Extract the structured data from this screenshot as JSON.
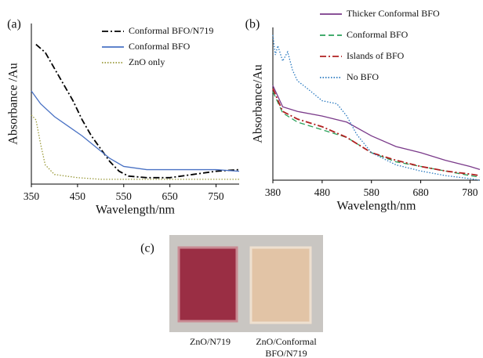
{
  "chart_data": [
    {
      "type": "line",
      "panel_label": "(a)",
      "x_label": "Wavelength/nm",
      "y_label": "Absorbance /Au",
      "xlim": [
        350,
        800
      ],
      "ylim": [
        0,
        1
      ],
      "xticks": [
        350,
        450,
        550,
        650,
        750
      ],
      "legend": "top-right",
      "series": [
        {
          "name": "Conformal BFO/N719",
          "color": "#000000",
          "dash": "dash-dot",
          "x": [
            360,
            380,
            400,
            420,
            440,
            460,
            480,
            500,
            520,
            540,
            560,
            600,
            650,
            700,
            750,
            800
          ],
          "values": [
            0.87,
            0.82,
            0.72,
            0.62,
            0.52,
            0.4,
            0.3,
            0.22,
            0.14,
            0.08,
            0.05,
            0.04,
            0.04,
            0.06,
            0.08,
            0.09
          ]
        },
        {
          "name": "Conformal BFO",
          "color": "#4a72c4",
          "dash": "solid",
          "x": [
            350,
            370,
            400,
            430,
            460,
            490,
            520,
            550,
            600,
            650,
            700,
            750,
            800
          ],
          "values": [
            0.58,
            0.5,
            0.42,
            0.36,
            0.3,
            0.23,
            0.16,
            0.11,
            0.09,
            0.09,
            0.09,
            0.09,
            0.08
          ]
        },
        {
          "name": "ZnO only",
          "color": "#9a9a3a",
          "dash": "dotted",
          "x": [
            350,
            360,
            370,
            380,
            400,
            450,
            500,
            600,
            700,
            800
          ],
          "values": [
            0.43,
            0.4,
            0.25,
            0.12,
            0.06,
            0.04,
            0.03,
            0.03,
            0.03,
            0.03
          ]
        }
      ]
    },
    {
      "type": "line",
      "panel_label": "(b)",
      "x_label": "Wavelength/nm",
      "y_label": "Absorbance/Au",
      "xlim": [
        380,
        800
      ],
      "ylim": [
        0,
        1
      ],
      "xticks": [
        380,
        480,
        580,
        680,
        780
      ],
      "legend": "top-right",
      "series": [
        {
          "name": "Thicker Conformal BFO",
          "color": "#7a3a8a",
          "dash": "solid",
          "x": [
            380,
            400,
            430,
            480,
            530,
            580,
            630,
            680,
            730,
            780,
            800
          ],
          "values": [
            0.62,
            0.48,
            0.45,
            0.42,
            0.38,
            0.29,
            0.22,
            0.18,
            0.13,
            0.09,
            0.07
          ]
        },
        {
          "name": "Conformal BFO",
          "color": "#2aa05a",
          "dash": "dashed",
          "x": [
            380,
            400,
            430,
            480,
            530,
            580,
            630,
            680,
            730,
            780,
            800
          ],
          "values": [
            0.58,
            0.44,
            0.38,
            0.33,
            0.28,
            0.18,
            0.12,
            0.09,
            0.06,
            0.03,
            0.02
          ]
        },
        {
          "name": "Islands of BFO",
          "color": "#b02020",
          "dash": "dash-dot",
          "x": [
            380,
            400,
            430,
            480,
            530,
            580,
            630,
            680,
            730,
            780,
            800
          ],
          "values": [
            0.6,
            0.45,
            0.4,
            0.35,
            0.28,
            0.18,
            0.13,
            0.09,
            0.06,
            0.04,
            0.03
          ]
        },
        {
          "name": "No BFO",
          "color": "#2a7ac0",
          "dash": "dotted",
          "x": [
            380,
            385,
            390,
            400,
            410,
            420,
            430,
            450,
            480,
            510,
            530,
            550,
            580,
            630,
            680,
            730,
            780,
            800
          ],
          "values": [
            0.95,
            0.82,
            0.88,
            0.78,
            0.84,
            0.72,
            0.65,
            0.6,
            0.52,
            0.5,
            0.42,
            0.3,
            0.18,
            0.1,
            0.06,
            0.03,
            0.01,
            0
          ]
        }
      ]
    }
  ],
  "photo": {
    "panel_label": "(c)",
    "captions": [
      {
        "lines": [
          "ZnO/N719"
        ]
      },
      {
        "lines": [
          "ZnO/Conformal",
          "BFO/N719"
        ]
      }
    ]
  }
}
